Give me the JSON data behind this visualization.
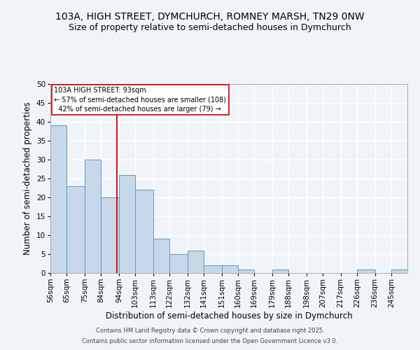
{
  "title_line1": "103A, HIGH STREET, DYMCHURCH, ROMNEY MARSH, TN29 0NW",
  "title_line2": "Size of property relative to semi-detached houses in Dymchurch",
  "xlabel": "Distribution of semi-detached houses by size in Dymchurch",
  "ylabel": "Number of semi-detached properties",
  "bin_labels": [
    "56sqm",
    "65sqm",
    "75sqm",
    "84sqm",
    "94sqm",
    "103sqm",
    "113sqm",
    "122sqm",
    "132sqm",
    "141sqm",
    "151sqm",
    "160sqm",
    "169sqm",
    "179sqm",
    "188sqm",
    "198sqm",
    "207sqm",
    "217sqm",
    "226sqm",
    "236sqm",
    "245sqm"
  ],
  "bin_edges": [
    56,
    65,
    75,
    84,
    94,
    103,
    113,
    122,
    132,
    141,
    151,
    160,
    169,
    179,
    188,
    198,
    207,
    217,
    226,
    236,
    245
  ],
  "heights": [
    39,
    23,
    30,
    20,
    26,
    22,
    9,
    5,
    6,
    2,
    2,
    1,
    0,
    1,
    0,
    0,
    0,
    0,
    1,
    0,
    1
  ],
  "bar_color": "#c8d8e8",
  "bar_edge_color": "#5a9ac8",
  "property_size": 93,
  "vline_color": "#cc0000",
  "annotation_line1": "103A HIGH STREET: 93sqm",
  "annotation_line2": "← 57% of semi-detached houses are smaller (108)",
  "annotation_line3": "  42% of semi-detached houses are larger (79) →",
  "annotation_box_color": "#ffffff",
  "annotation_box_edge": "#cc0000",
  "footer_line1": "Contains HM Land Registry data © Crown copyright and database right 2025.",
  "footer_line2": "Contains public sector information licensed under the Open Government Licence v3.0.",
  "ylim": [
    0,
    50
  ],
  "yticks": [
    0,
    5,
    10,
    15,
    20,
    25,
    30,
    35,
    40,
    45,
    50
  ],
  "bg_color": "#f0f4f8",
  "grid_color": "#ffffff",
  "title_fontsize": 10,
  "subtitle_fontsize": 9,
  "axis_label_fontsize": 8.5,
  "tick_fontsize": 7.5,
  "footer_fontsize": 6
}
